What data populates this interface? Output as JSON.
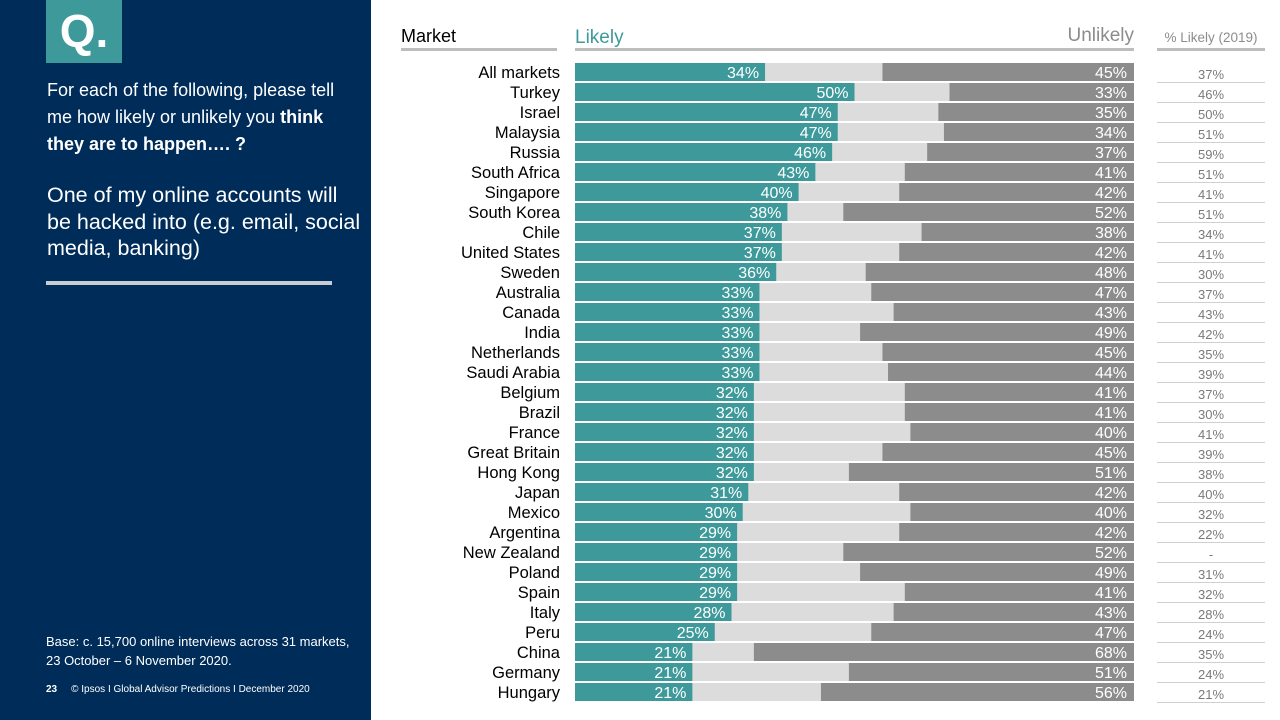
{
  "sidebar": {
    "badge": "Q.",
    "question_plain": "For each of the following, please tell me how likely or unlikely you",
    "question_bold": "think they are to happen…. ?",
    "statement": "One of my online accounts will be hacked into (e.g. email, social media, banking)",
    "base_note": "Base: c. 15,700 online interviews across 31 markets,  23 October – 6 November 2020.",
    "page_number": "23",
    "footer": "© Ipsos I Global Advisor Predictions I December 2020"
  },
  "colors": {
    "likely": "#3E9A9A",
    "neutral": "#DCDCDC",
    "unlikely": "#8C8C8C",
    "sidebar_bg": "#002C5A",
    "header_rule": "#BDBDBD"
  },
  "chart_data": {
    "type": "bar",
    "orientation": "horizontal-stacked-100",
    "column_headers": {
      "market": "Market",
      "likely": "Likely",
      "unlikely": "Unlikely",
      "prior": "% Likely (2019)"
    },
    "categories": [
      "All markets",
      "Turkey",
      "Israel",
      "Malaysia",
      "Russia",
      "South Africa",
      "Singapore",
      "South Korea",
      "Chile",
      "United States",
      "Sweden",
      "Australia",
      "Canada",
      "India",
      "Netherlands",
      "Saudi Arabia",
      "Belgium",
      "Brazil",
      "France",
      "Great Britain",
      "Hong Kong",
      "Japan",
      "Mexico",
      "Argentina",
      "New Zealand",
      "Poland",
      "Spain",
      "Italy",
      "Peru",
      "China",
      "Germany",
      "Hungary"
    ],
    "series": [
      {
        "name": "Likely",
        "values": [
          34,
          50,
          47,
          47,
          46,
          43,
          40,
          38,
          37,
          37,
          36,
          33,
          33,
          33,
          33,
          33,
          32,
          32,
          32,
          32,
          32,
          31,
          30,
          29,
          29,
          29,
          29,
          28,
          25,
          21,
          21,
          21
        ]
      },
      {
        "name": "Unlikely",
        "values": [
          45,
          33,
          35,
          34,
          37,
          41,
          42,
          52,
          38,
          42,
          48,
          47,
          43,
          49,
          45,
          44,
          41,
          41,
          40,
          45,
          51,
          42,
          40,
          42,
          52,
          49,
          41,
          43,
          47,
          68,
          51,
          56
        ]
      }
    ],
    "prior_likely_2019": [
      "37%",
      "46%",
      "50%",
      "51%",
      "59%",
      "51%",
      "41%",
      "51%",
      "34%",
      "41%",
      "30%",
      "37%",
      "43%",
      "42%",
      "35%",
      "39%",
      "37%",
      "30%",
      "41%",
      "39%",
      "38%",
      "40%",
      "32%",
      "22%",
      "-",
      "31%",
      "32%",
      "28%",
      "24%",
      "35%",
      "24%",
      "21%"
    ],
    "value_suffix": "%",
    "xlim": [
      0,
      100
    ]
  }
}
